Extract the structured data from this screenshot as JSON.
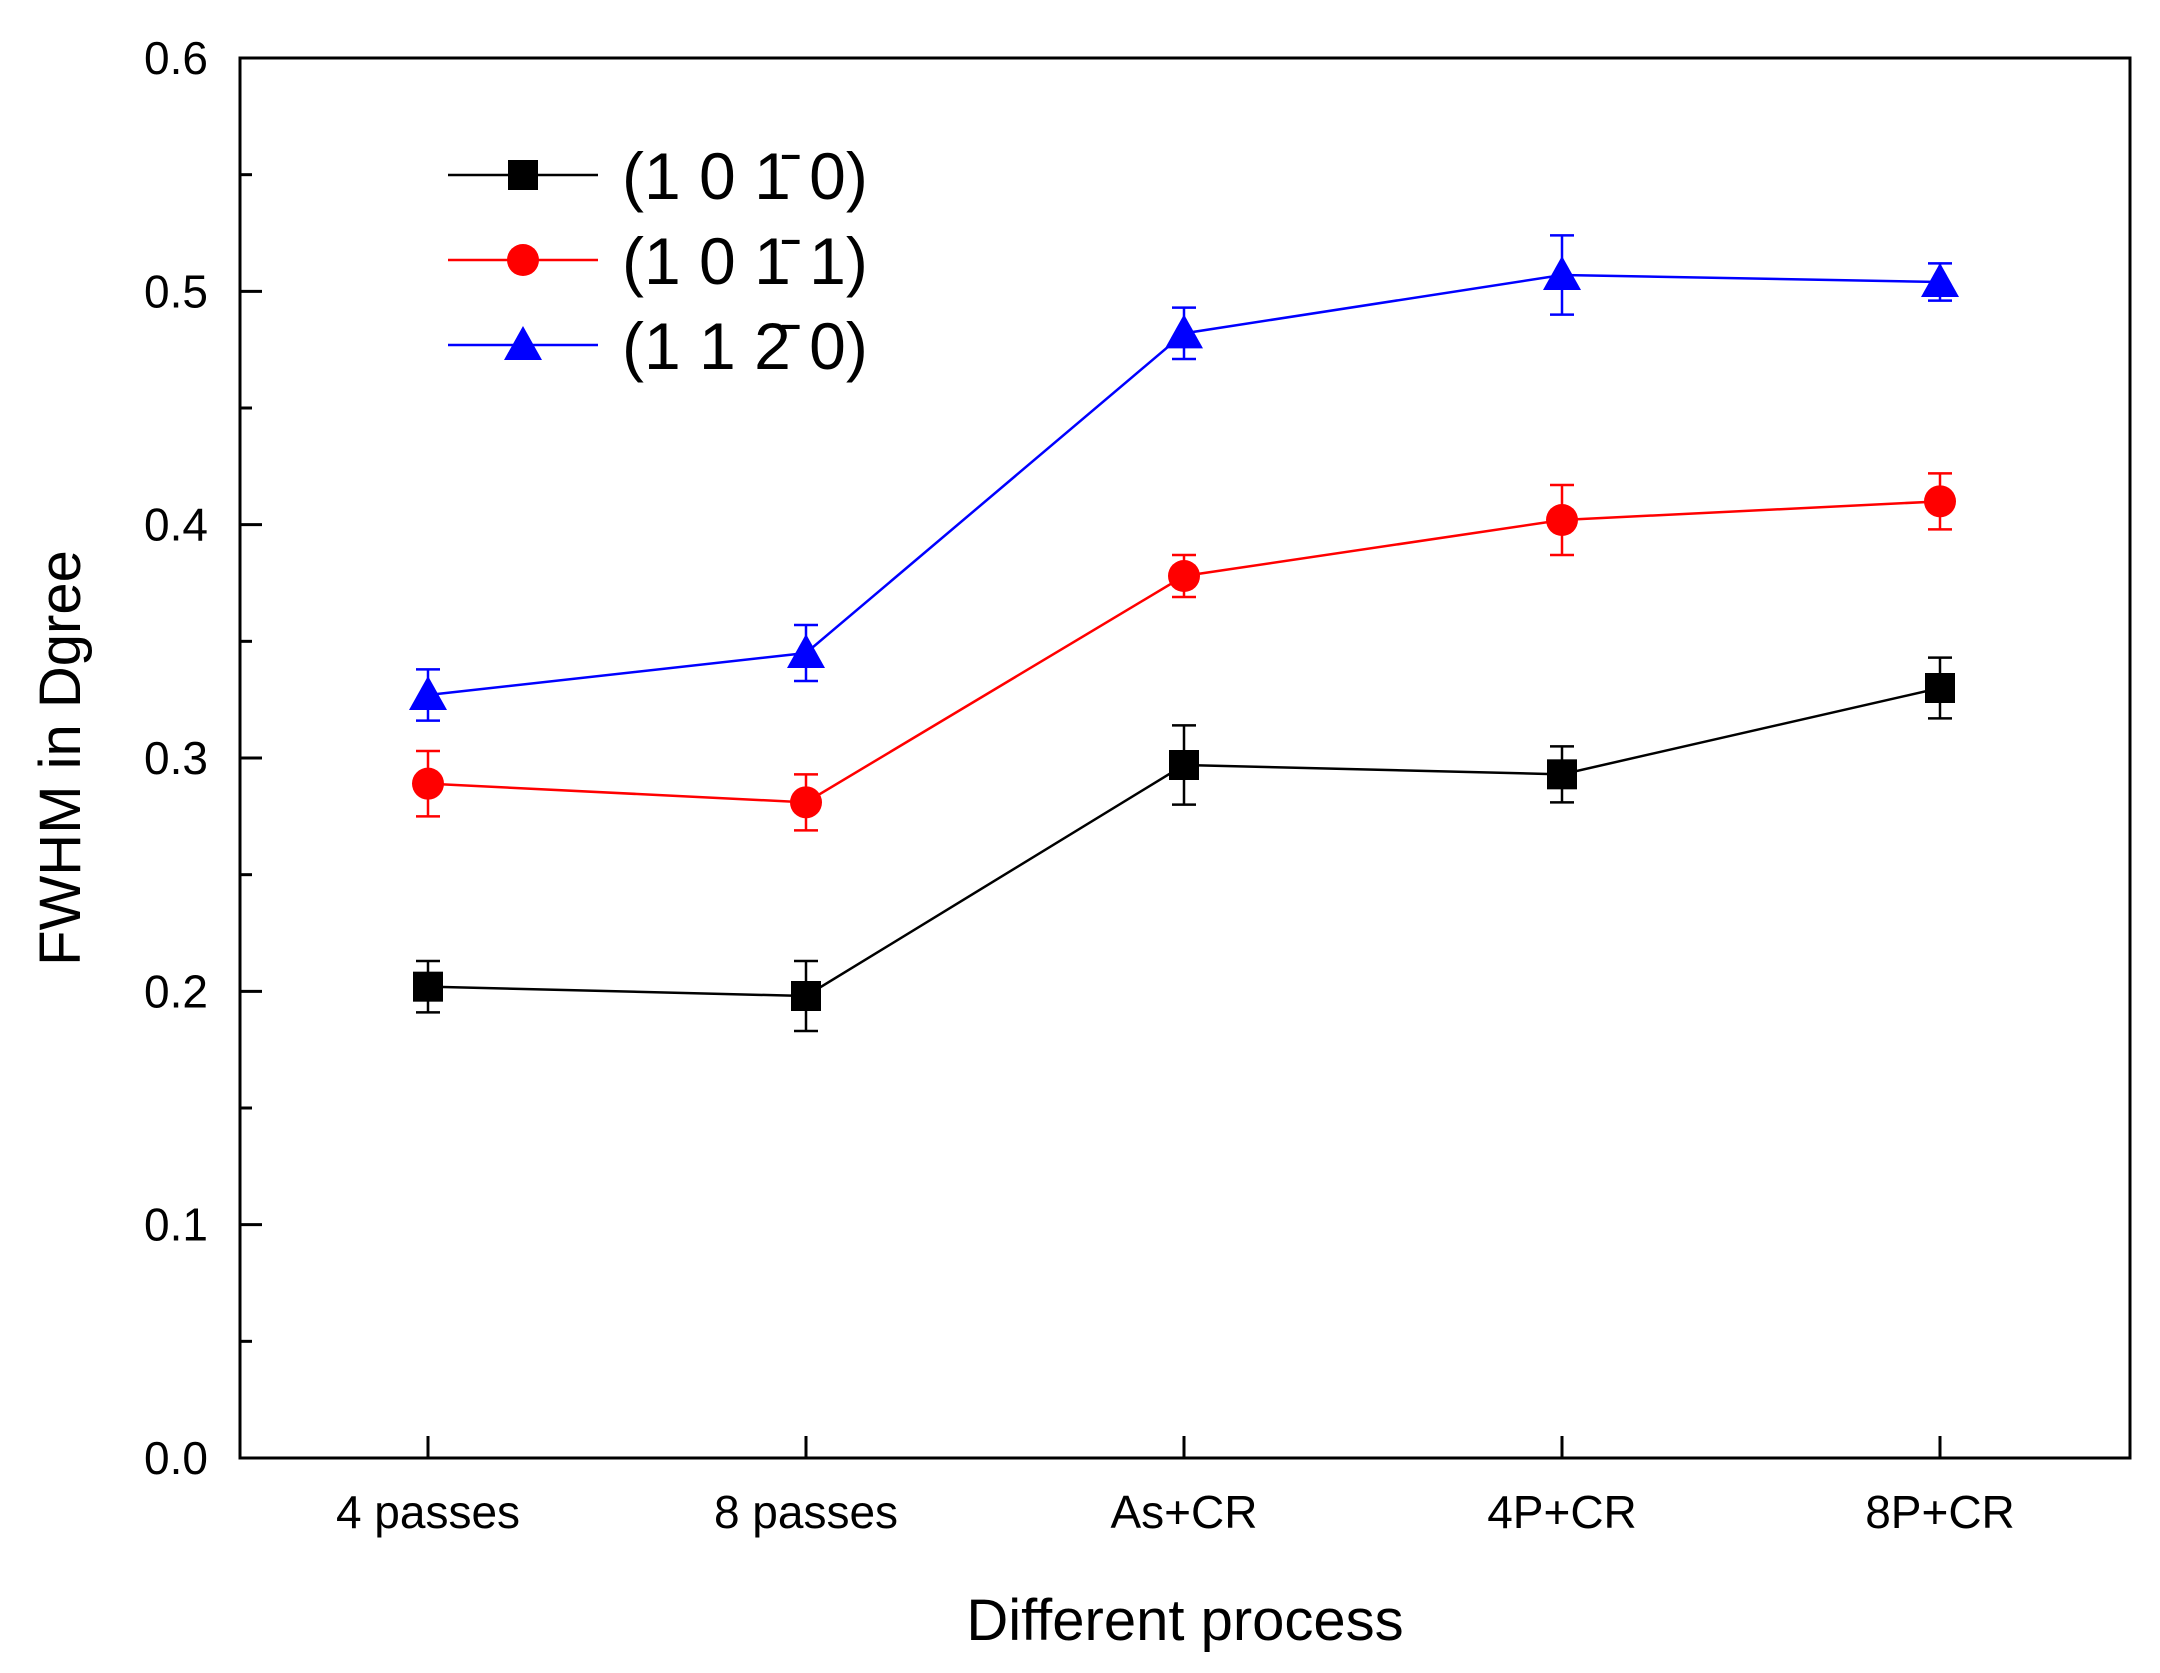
{
  "chart_data": {
    "type": "line",
    "xlabel": "Different process",
    "ylabel": "FWHM in Dgree",
    "categories": [
      "4 passes",
      "8 passes",
      "As+CR",
      "4P+CR",
      "8P+CR"
    ],
    "ylim": [
      0.0,
      0.6
    ],
    "yticks": [
      "0.0",
      "0.1",
      "0.2",
      "0.3",
      "0.4",
      "0.5",
      "0.6"
    ],
    "grid": false,
    "legend": "top-left",
    "series": [
      {
        "name": "(1 0 1̄ 0)",
        "color": "#000000",
        "marker": "square",
        "values": [
          0.202,
          0.198,
          0.297,
          0.293,
          0.33
        ],
        "errors": [
          0.011,
          0.015,
          0.017,
          0.012,
          0.013
        ]
      },
      {
        "name": "(1 0 1̄ 1)",
        "color": "#ff0000",
        "marker": "circle",
        "values": [
          0.289,
          0.281,
          0.378,
          0.402,
          0.41
        ],
        "errors": [
          0.014,
          0.012,
          0.009,
          0.015,
          0.012
        ]
      },
      {
        "name": "(1 1 2̄ 0)",
        "color": "#0000ff",
        "marker": "triangle",
        "values": [
          0.327,
          0.345,
          0.482,
          0.507,
          0.504
        ],
        "errors": [
          0.011,
          0.012,
          0.011,
          0.017,
          0.008
        ]
      }
    ]
  }
}
